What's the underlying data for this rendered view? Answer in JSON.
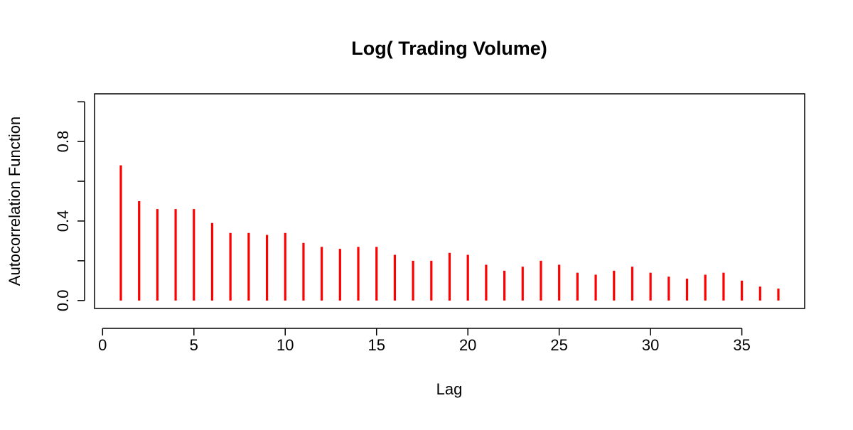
{
  "chart_data": {
    "type": "stem",
    "title": "Log( Trading Volume)",
    "x_label": "Lag",
    "y_label": "Autocorrelation Function",
    "x": [
      1,
      2,
      3,
      4,
      5,
      6,
      7,
      8,
      9,
      10,
      11,
      12,
      13,
      14,
      15,
      16,
      17,
      18,
      19,
      20,
      21,
      22,
      23,
      24,
      25,
      26,
      27,
      28,
      29,
      30,
      31,
      32,
      33,
      34,
      35,
      36,
      37
    ],
    "values": [
      0.68,
      0.5,
      0.46,
      0.46,
      0.46,
      0.39,
      0.34,
      0.34,
      0.33,
      0.34,
      0.29,
      0.27,
      0.26,
      0.27,
      0.27,
      0.23,
      0.2,
      0.2,
      0.24,
      0.23,
      0.18,
      0.15,
      0.17,
      0.2,
      0.18,
      0.14,
      0.13,
      0.15,
      0.17,
      0.14,
      0.12,
      0.11,
      0.13,
      0.14,
      0.1,
      0.07,
      0.06
    ],
    "color": "#ff0000",
    "xlim": [
      -0.44,
      38.44
    ],
    "xticks": [
      0,
      5,
      10,
      15,
      20,
      25,
      30,
      35
    ],
    "ylim": [
      -0.04,
      1.04
    ],
    "yticks": [
      {
        "value": 0,
        "label": "0.0"
      },
      {
        "value": 0.2,
        "label": null
      },
      0.4,
      {
        "value": 0.6,
        "label": null
      },
      0.8,
      {
        "value": 1,
        "label": null
      }
    ]
  }
}
